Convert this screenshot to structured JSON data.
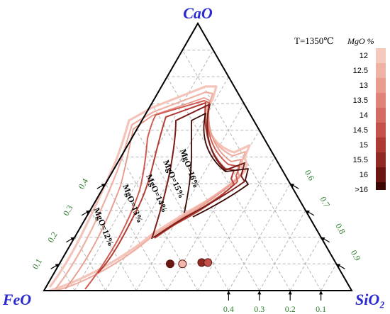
{
  "chart_data": {
    "type": "ternary",
    "vertices": {
      "top": "CaO",
      "left": "FeO",
      "right": "SiO₂"
    },
    "condition": "T=1350℃",
    "legend_title": "MgO %",
    "legend_levels": [
      "12",
      "12.5",
      "13",
      "13.5",
      "14",
      "14.5",
      "15",
      "15.5",
      "16",
      ">16"
    ],
    "legend_colors": [
      "#f5c9bd",
      "#efb3a6",
      "#e89d8f",
      "#e0847a",
      "#d56c63",
      "#c4524a",
      "#ad3b33",
      "#902a24",
      "#6b1612",
      "#3b0806"
    ],
    "axes": {
      "FeO": [
        "0.4",
        "0.3",
        "0.2",
        "0.1"
      ],
      "CaO": [
        "0.1",
        "0.2",
        "0.3",
        "0.4"
      ],
      "SiO2": [
        "0.6",
        "0.7",
        "0.8",
        "0.9"
      ]
    },
    "isoline_labels": [
      "MgO=12%",
      "MgO=13%",
      "MgO=14%",
      "MgO=15%",
      "MgO=16%"
    ],
    "points": [
      {
        "CaO": 0.1,
        "SiO2": 0.36,
        "color": "#6b1612"
      },
      {
        "CaO": 0.1,
        "SiO2": 0.4,
        "color": "#f3b8ad"
      },
      {
        "CaO": 0.105,
        "SiO2": 0.46,
        "color": "#902a24"
      },
      {
        "CaO": 0.105,
        "SiO2": 0.48,
        "color": "#c4524a"
      }
    ]
  }
}
